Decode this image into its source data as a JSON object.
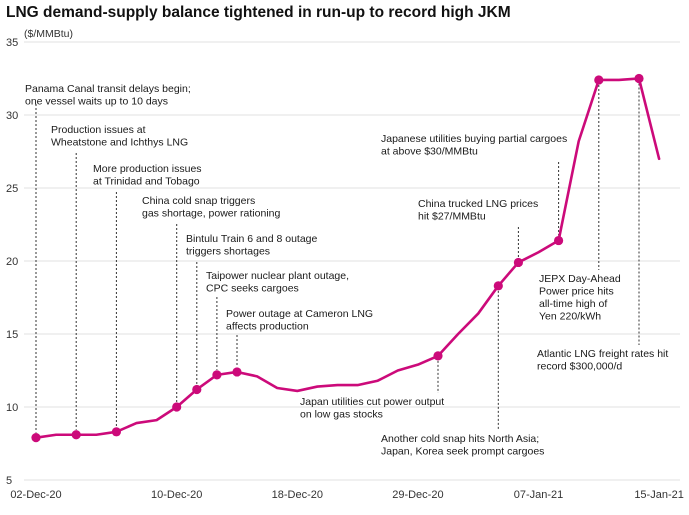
{
  "chart_data": {
    "type": "line",
    "title": "LNG demand-supply balance tightened in run-up to record high JKM",
    "ylabel": "($/MMBtu)",
    "xlabel": "",
    "ylim": [
      5,
      35
    ],
    "yticks": [
      5,
      10,
      15,
      20,
      25,
      30,
      35
    ],
    "x_tick_labels": [
      {
        "label": "02-Dec-20",
        "index": 0
      },
      {
        "label": "10-Dec-20",
        "index": 7
      },
      {
        "label": "18-Dec-20",
        "index": 13
      },
      {
        "label": "29-Dec-20",
        "index": 19
      },
      {
        "label": "07-Jan-21",
        "index": 25
      },
      {
        "label": "15-Jan-21",
        "index": 31
      }
    ],
    "grid": true,
    "colors": {
      "line": "#cc0a7a",
      "grid": "#e2e2e2",
      "leader": "#333333"
    },
    "series": [
      {
        "values": [
          7.9,
          8.1,
          8.1,
          8.1,
          8.3,
          8.9,
          9.1,
          10.0,
          11.2,
          12.2,
          12.4,
          12.1,
          11.3,
          11.1,
          11.4,
          11.5,
          11.5,
          11.8,
          12.5,
          12.9,
          13.5,
          15.0,
          16.4,
          18.3,
          19.9,
          20.6,
          21.4,
          28.2,
          32.4,
          32.4,
          32.5,
          27.0
        ]
      }
    ],
    "annotations": [
      {
        "index": 0,
        "lines": [
          "Panama Canal transit delays begin;",
          "one vessel waits up to 10 days"
        ],
        "side": "above"
      },
      {
        "index": 2,
        "lines": [
          "Production issues at",
          "Wheatstone and Ichthys LNG"
        ],
        "side": "above"
      },
      {
        "index": 4,
        "lines": [
          "More production issues",
          "at Trinidad and Tobago"
        ],
        "side": "above"
      },
      {
        "index": 7,
        "lines": [
          "China cold snap triggers",
          "gas shortage, power rationing"
        ],
        "side": "above"
      },
      {
        "index": 8,
        "lines": [
          "Bintulu Train 6 and 8 outage",
          "triggers shortages"
        ],
        "side": "above"
      },
      {
        "index": 9,
        "lines": [
          "Taipower nuclear plant outage,",
          "CPC seeks cargoes"
        ],
        "side": "above"
      },
      {
        "index": 10,
        "lines": [
          "Power outage at Cameron LNG",
          "affects production"
        ],
        "side": "above"
      },
      {
        "index": 20,
        "lines": [
          "Japan utilities cut power output",
          "on low gas stocks"
        ],
        "side": "below"
      },
      {
        "index": 23,
        "lines": [
          "Another cold snap hits North Asia;",
          "Japan, Korea seek prompt cargoes"
        ],
        "side": "below"
      },
      {
        "index": 24,
        "lines": [
          "China trucked LNG prices",
          "hit $27/MMBtu"
        ],
        "side": "above"
      },
      {
        "index": 26,
        "lines": [
          "Japanese utilities buying partial cargoes",
          "at above $30/MMBtu"
        ],
        "side": "above"
      },
      {
        "index": 28,
        "lines": [
          "JEPX Day-Ahead",
          "Power price hits",
          "all-time high of",
          "Yen 220/kWh"
        ],
        "side": "below"
      },
      {
        "index": 30,
        "lines": [
          "Atlantic LNG freight rates hit",
          "record $300,000/d"
        ],
        "side": "below"
      }
    ]
  }
}
